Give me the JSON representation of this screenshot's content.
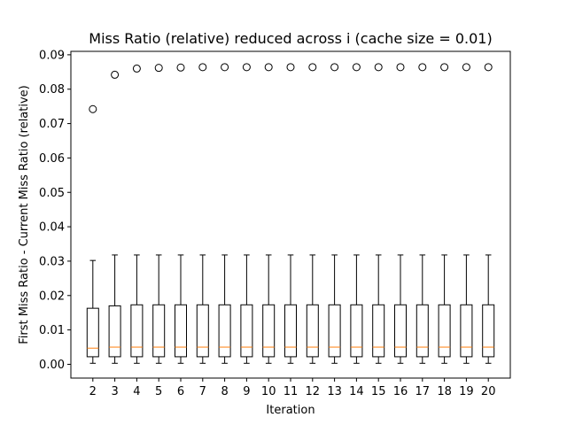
{
  "chart_data": {
    "type": "box",
    "title": "Miss Ratio (relative) reduced across i (cache size = 0.01)",
    "xlabel": "Iteration",
    "ylabel": "First Miss Ratio - Current Miss Ratio (relative)",
    "ylim": [
      -0.004,
      0.091
    ],
    "yticks": [
      0.0,
      0.01,
      0.02,
      0.03,
      0.04,
      0.05,
      0.06,
      0.07,
      0.08,
      0.09
    ],
    "ytick_labels": [
      "0.00",
      "0.01",
      "0.02",
      "0.03",
      "0.04",
      "0.05",
      "0.06",
      "0.07",
      "0.08",
      "0.09"
    ],
    "grid": false,
    "categories": [
      "2",
      "3",
      "4",
      "5",
      "6",
      "7",
      "8",
      "9",
      "10",
      "11",
      "12",
      "13",
      "14",
      "15",
      "16",
      "17",
      "18",
      "19",
      "20"
    ],
    "boxes": [
      {
        "whisker_low": 0.0003,
        "q1": 0.0022,
        "median": 0.0047,
        "q3": 0.0163,
        "whisker_high": 0.0302,
        "outliers": [
          0.0742
        ]
      },
      {
        "whisker_low": 0.0003,
        "q1": 0.0022,
        "median": 0.005,
        "q3": 0.017,
        "whisker_high": 0.0318,
        "outliers": [
          0.0842
        ]
      },
      {
        "whisker_low": 0.0003,
        "q1": 0.0022,
        "median": 0.005,
        "q3": 0.0173,
        "whisker_high": 0.0318,
        "outliers": [
          0.086
        ]
      },
      {
        "whisker_low": 0.0003,
        "q1": 0.0022,
        "median": 0.005,
        "q3": 0.0173,
        "whisker_high": 0.0318,
        "outliers": [
          0.0862
        ]
      },
      {
        "whisker_low": 0.0003,
        "q1": 0.0022,
        "median": 0.005,
        "q3": 0.0173,
        "whisker_high": 0.0318,
        "outliers": [
          0.0863
        ]
      },
      {
        "whisker_low": 0.0003,
        "q1": 0.0022,
        "median": 0.005,
        "q3": 0.0173,
        "whisker_high": 0.0318,
        "outliers": [
          0.0864
        ]
      },
      {
        "whisker_low": 0.0003,
        "q1": 0.0022,
        "median": 0.005,
        "q3": 0.0173,
        "whisker_high": 0.0318,
        "outliers": [
          0.0864
        ]
      },
      {
        "whisker_low": 0.0003,
        "q1": 0.0022,
        "median": 0.005,
        "q3": 0.0173,
        "whisker_high": 0.0318,
        "outliers": [
          0.0864
        ]
      },
      {
        "whisker_low": 0.0003,
        "q1": 0.0022,
        "median": 0.005,
        "q3": 0.0173,
        "whisker_high": 0.0318,
        "outliers": [
          0.0864
        ]
      },
      {
        "whisker_low": 0.0003,
        "q1": 0.0022,
        "median": 0.005,
        "q3": 0.0173,
        "whisker_high": 0.0318,
        "outliers": [
          0.0864
        ]
      },
      {
        "whisker_low": 0.0003,
        "q1": 0.0022,
        "median": 0.005,
        "q3": 0.0173,
        "whisker_high": 0.0318,
        "outliers": [
          0.0864
        ]
      },
      {
        "whisker_low": 0.0003,
        "q1": 0.0022,
        "median": 0.005,
        "q3": 0.0173,
        "whisker_high": 0.0318,
        "outliers": [
          0.0864
        ]
      },
      {
        "whisker_low": 0.0003,
        "q1": 0.0022,
        "median": 0.005,
        "q3": 0.0173,
        "whisker_high": 0.0318,
        "outliers": [
          0.0864
        ]
      },
      {
        "whisker_low": 0.0003,
        "q1": 0.0022,
        "median": 0.005,
        "q3": 0.0173,
        "whisker_high": 0.0318,
        "outliers": [
          0.0864
        ]
      },
      {
        "whisker_low": 0.0003,
        "q1": 0.0022,
        "median": 0.005,
        "q3": 0.0173,
        "whisker_high": 0.0318,
        "outliers": [
          0.0864
        ]
      },
      {
        "whisker_low": 0.0003,
        "q1": 0.0022,
        "median": 0.005,
        "q3": 0.0173,
        "whisker_high": 0.0318,
        "outliers": [
          0.0864
        ]
      },
      {
        "whisker_low": 0.0003,
        "q1": 0.0022,
        "median": 0.005,
        "q3": 0.0173,
        "whisker_high": 0.0318,
        "outliers": [
          0.0864
        ]
      },
      {
        "whisker_low": 0.0003,
        "q1": 0.0022,
        "median": 0.005,
        "q3": 0.0173,
        "whisker_high": 0.0318,
        "outliers": [
          0.0864
        ]
      },
      {
        "whisker_low": 0.0003,
        "q1": 0.0022,
        "median": 0.005,
        "q3": 0.0173,
        "whisker_high": 0.0318,
        "outliers": [
          0.0864
        ]
      }
    ],
    "colors": {
      "box": "#000000",
      "median": "#ff7f0e",
      "outlier": "#000000",
      "background": "#ffffff"
    }
  }
}
